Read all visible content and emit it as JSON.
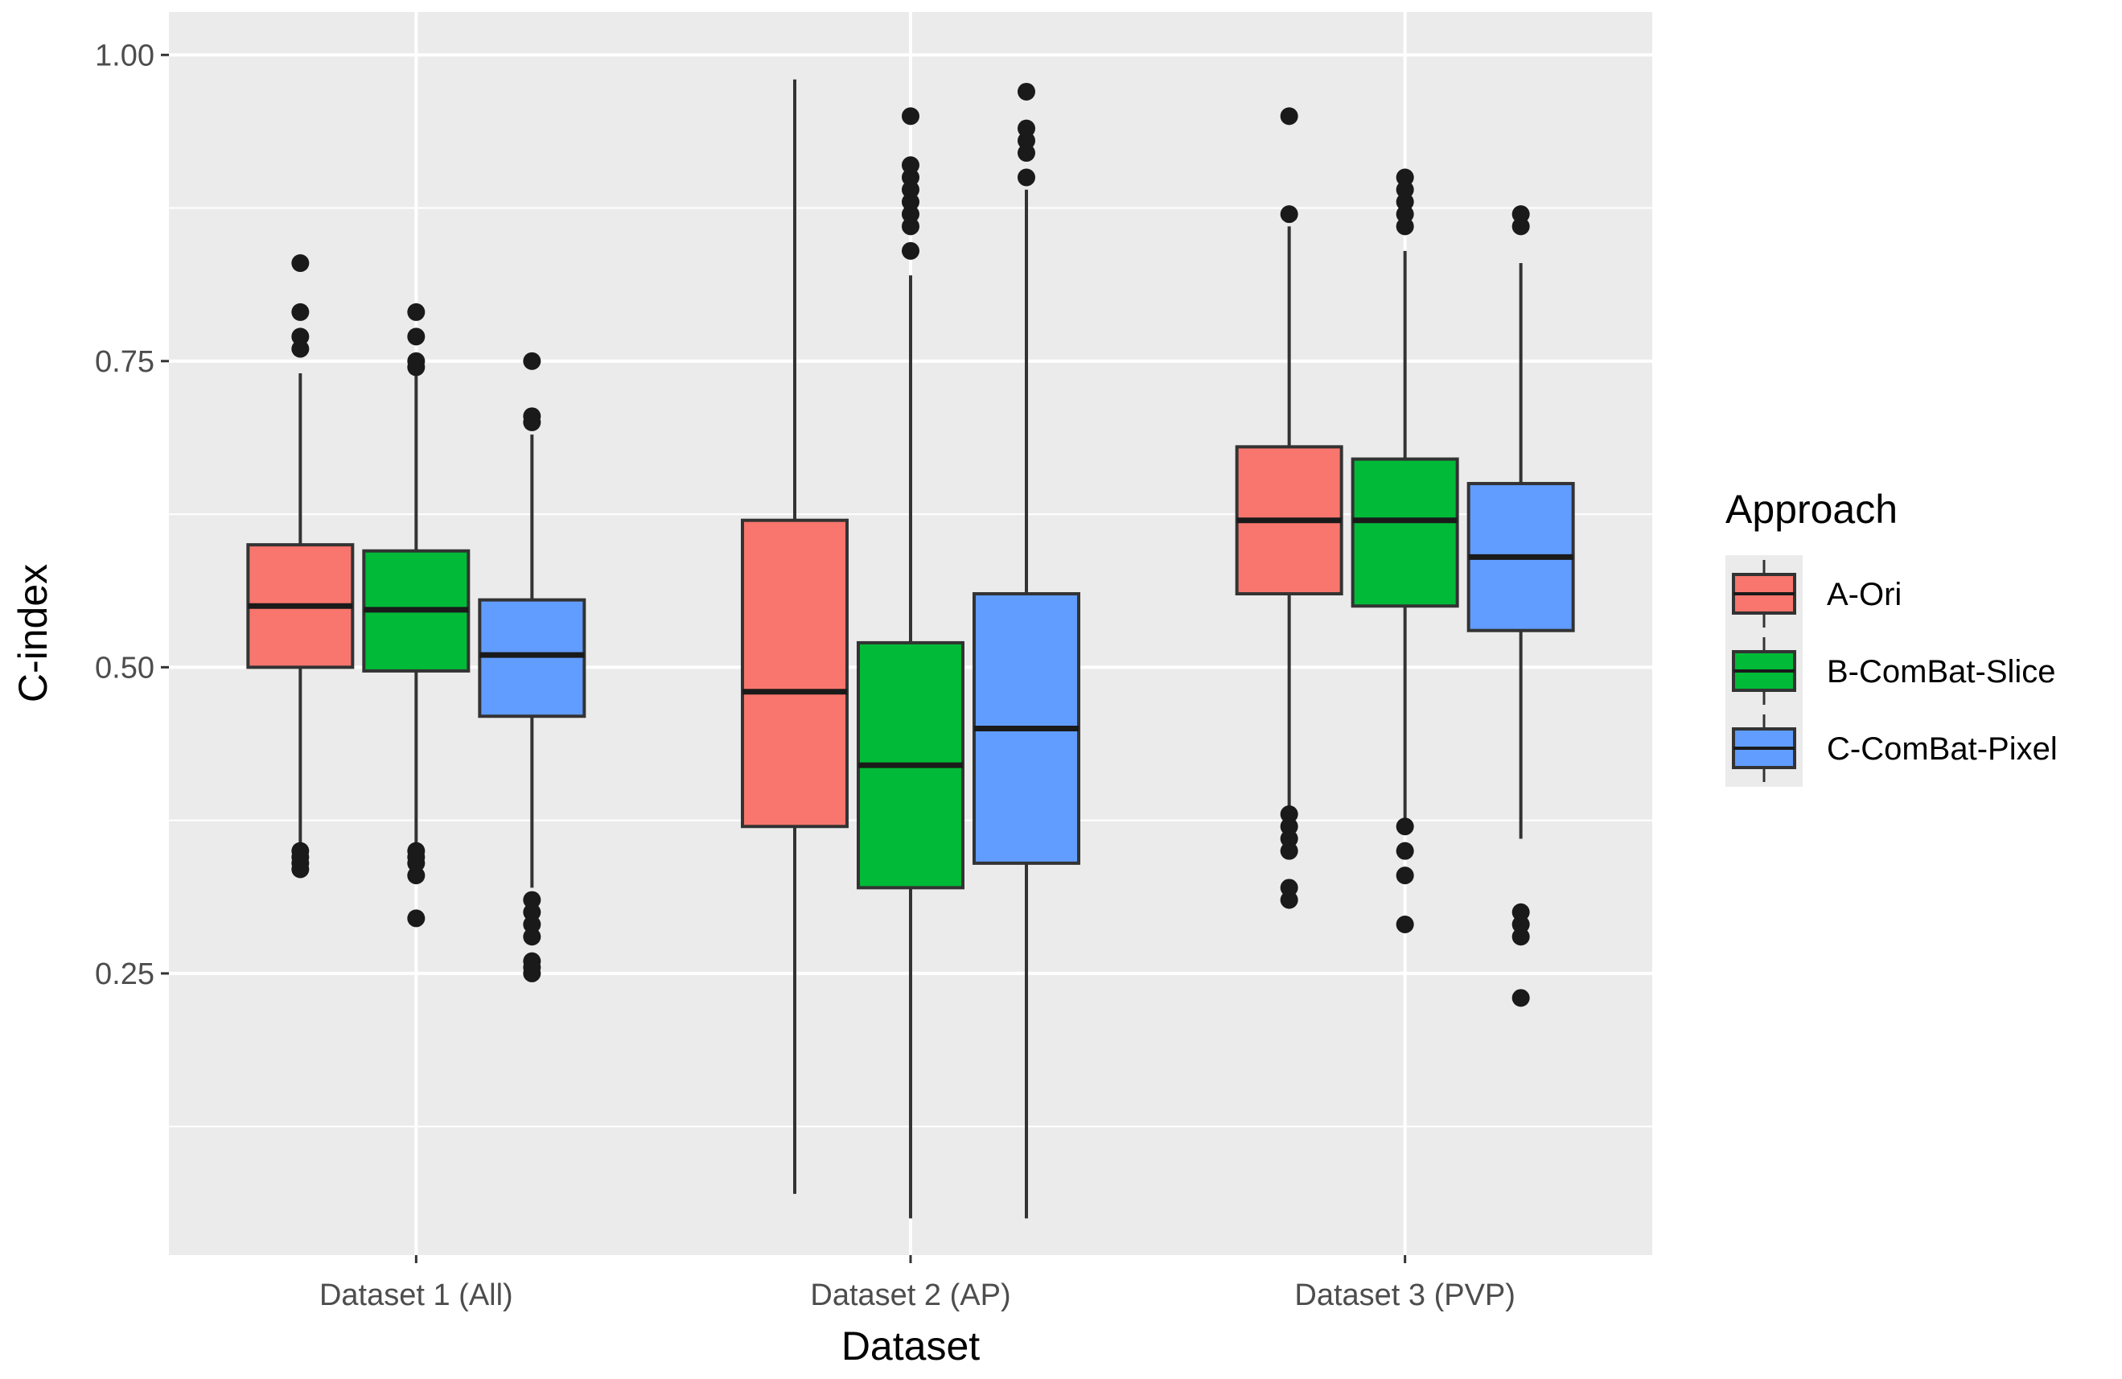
{
  "chart_data": {
    "type": "boxplot",
    "title": "",
    "xlabel": "Dataset",
    "ylabel": "C-index",
    "ylim": [
      0.02,
      1.035
    ],
    "yticks": [
      0.25,
      0.5,
      0.75,
      1.0
    ],
    "ytick_labels": [
      "0.25",
      "0.50",
      "0.75",
      "1.00"
    ],
    "grid": true,
    "legend": {
      "title": "Approach",
      "position": "right"
    },
    "categories": [
      "Dataset 1 (All)",
      "Dataset 2 (AP)",
      "Dataset 3 (PVP)"
    ],
    "series": [
      {
        "name": "A-Ori",
        "color": "#F8766D",
        "boxes": [
          {
            "category": "Dataset 1 (All)",
            "whisker_low": 0.35,
            "q1": 0.5,
            "median": 0.55,
            "q3": 0.6,
            "whisker_high": 0.74,
            "outliers": [
              0.34,
              0.335,
              0.345,
              0.35,
              0.76,
              0.77,
              0.79,
              0.83
            ]
          },
          {
            "category": "Dataset 2 (AP)",
            "whisker_low": 0.07,
            "q1": 0.37,
            "median": 0.48,
            "q3": 0.62,
            "whisker_high": 0.98,
            "outliers": []
          },
          {
            "category": "Dataset 3 (PVP)",
            "whisker_low": 0.385,
            "q1": 0.56,
            "median": 0.62,
            "q3": 0.68,
            "whisker_high": 0.86,
            "outliers": [
              0.31,
              0.32,
              0.35,
              0.36,
              0.37,
              0.38,
              0.87,
              0.95
            ]
          }
        ]
      },
      {
        "name": "B-ComBat-Slice",
        "color": "#00BA38",
        "boxes": [
          {
            "category": "Dataset 1 (All)",
            "whisker_low": 0.355,
            "q1": 0.497,
            "median": 0.547,
            "q3": 0.595,
            "whisker_high": 0.74,
            "outliers": [
              0.295,
              0.33,
              0.34,
              0.345,
              0.35,
              0.745,
              0.75,
              0.77,
              0.79
            ]
          },
          {
            "category": "Dataset 2 (AP)",
            "whisker_low": 0.05,
            "q1": 0.32,
            "median": 0.42,
            "q3": 0.52,
            "whisker_high": 0.82,
            "outliers": [
              0.84,
              0.86,
              0.87,
              0.88,
              0.89,
              0.9,
              0.91,
              0.95
            ]
          },
          {
            "category": "Dataset 3 (PVP)",
            "whisker_low": 0.375,
            "q1": 0.55,
            "median": 0.62,
            "q3": 0.67,
            "whisker_high": 0.84,
            "outliers": [
              0.29,
              0.33,
              0.35,
              0.37,
              0.86,
              0.87,
              0.88,
              0.89,
              0.9
            ]
          }
        ]
      },
      {
        "name": "C-ComBat-Pixel",
        "color": "#619CFF",
        "boxes": [
          {
            "category": "Dataset 1 (All)",
            "whisker_low": 0.32,
            "q1": 0.46,
            "median": 0.51,
            "q3": 0.555,
            "whisker_high": 0.69,
            "outliers": [
              0.25,
              0.255,
              0.26,
              0.28,
              0.29,
              0.3,
              0.31,
              0.7,
              0.705,
              0.75
            ]
          },
          {
            "category": "Dataset 2 (AP)",
            "whisker_low": 0.05,
            "q1": 0.34,
            "median": 0.45,
            "q3": 0.56,
            "whisker_high": 0.89,
            "outliers": [
              0.9,
              0.92,
              0.93,
              0.94,
              0.97
            ]
          },
          {
            "category": "Dataset 3 (PVP)",
            "whisker_low": 0.36,
            "q1": 0.53,
            "median": 0.59,
            "q3": 0.65,
            "whisker_high": 0.83,
            "outliers": [
              0.23,
              0.28,
              0.29,
              0.3,
              0.86,
              0.87
            ]
          }
        ]
      }
    ]
  }
}
